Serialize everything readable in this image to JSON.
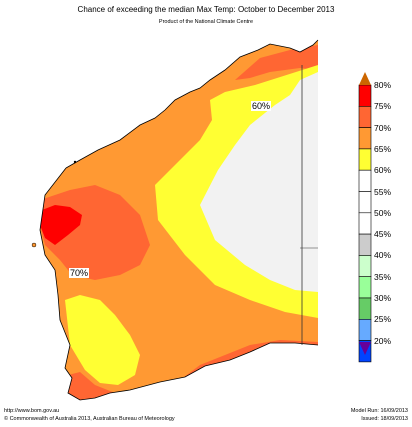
{
  "header": {
    "title": "Chance of exceeding the median Max Temp: October to December 2013",
    "subtitle": "Product of the National Climate Centre"
  },
  "map": {
    "labels": [
      "60%",
      "70%"
    ]
  },
  "legend": {
    "items": [
      {
        "label": "80%",
        "color": "#ff0000"
      },
      {
        "label": "75%",
        "color": "#ff6633"
      },
      {
        "label": "70%",
        "color": "#ff9933"
      },
      {
        "label": "65%",
        "color": "#ffff33"
      },
      {
        "label": "60%",
        "color": "#ffffff"
      },
      {
        "label": "55%",
        "color": "#ffffff"
      },
      {
        "label": "50%",
        "color": "#ffffff"
      },
      {
        "label": "45%",
        "color": "#cccccc"
      },
      {
        "label": "40%",
        "color": "#ccffcc"
      },
      {
        "label": "35%",
        "color": "#99ff99"
      },
      {
        "label": "30%",
        "color": "#66cc66"
      },
      {
        "label": "25%",
        "color": "#66aaff"
      },
      {
        "label": "20%",
        "color": "#0044ff"
      }
    ],
    "top_color": "#cc6600",
    "bottom_color": "#660099"
  },
  "footer": {
    "url": "http://www.bom.gov.au",
    "copyright": "©  Commonwealth of Australia 2013, Australian Bureau of Meteorology",
    "model_run": "Model Run: 16/09/2013",
    "issued": "Issued: 18/09/2013"
  }
}
